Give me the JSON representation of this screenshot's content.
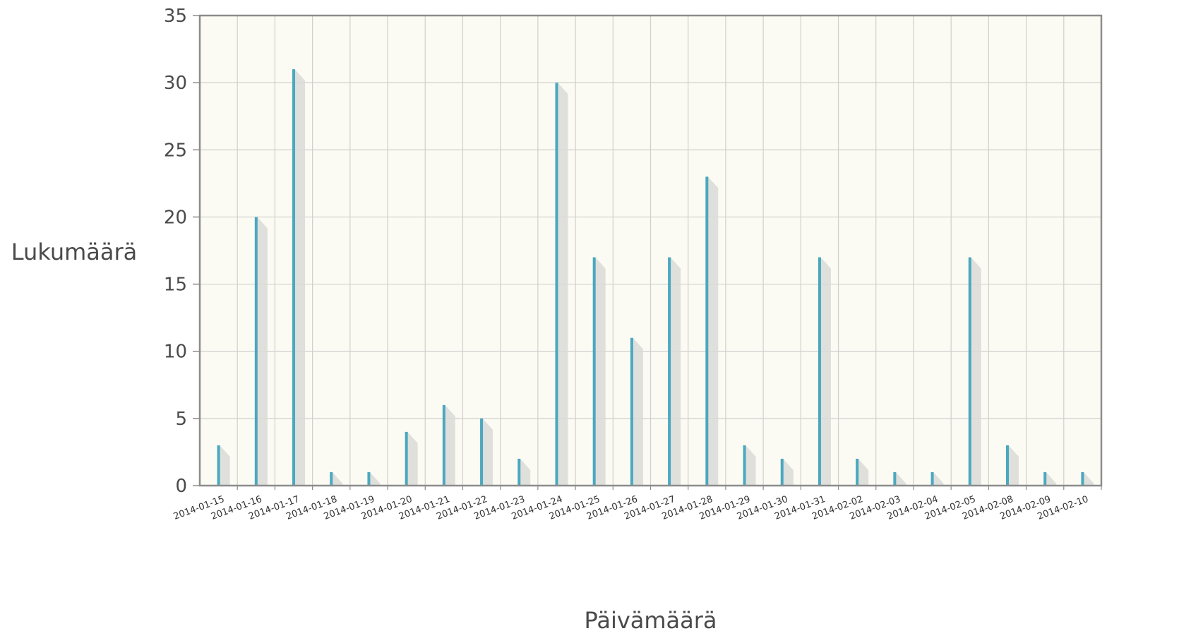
{
  "chart_data": {
    "type": "bar",
    "title": "",
    "xlabel": "Päivämäärä",
    "ylabel": "Lukumäärä",
    "ylim": [
      0,
      35
    ],
    "yticks": [
      0,
      5,
      10,
      15,
      20,
      25,
      30,
      35
    ],
    "grid": true,
    "categories": [
      "2014-01-15",
      "2014-01-16",
      "2014-01-17",
      "2014-01-18",
      "2014-01-19",
      "2014-01-20",
      "2014-01-21",
      "2014-01-22",
      "2014-01-23",
      "2014-01-24",
      "2014-01-25",
      "2014-01-26",
      "2014-01-27",
      "2014-01-28",
      "2014-01-29",
      "2014-01-30",
      "2014-01-31",
      "2014-02-02",
      "2014-02-03",
      "2014-02-04",
      "2014-02-05",
      "2014-02-08",
      "2014-02-09",
      "2014-02-10"
    ],
    "values": [
      3,
      20,
      31,
      1,
      1,
      4,
      6,
      5,
      2,
      30,
      17,
      11,
      17,
      23,
      3,
      2,
      17,
      2,
      1,
      1,
      17,
      3,
      1,
      1
    ],
    "colors": {
      "bar": "#4aa8bf",
      "shadow": "#d9d9d6",
      "plot_background": "#fcfbf3",
      "grid": "#cfcfcf",
      "frame": "#8c8c8c"
    }
  }
}
